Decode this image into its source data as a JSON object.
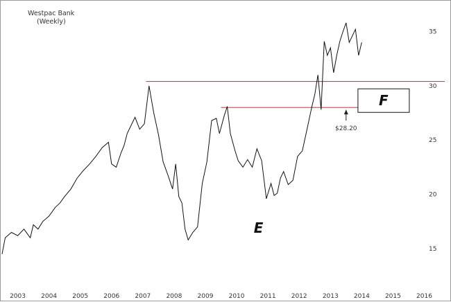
{
  "chart_data": {
    "type": "line",
    "title": "Westpac Bank",
    "subtitle": "(Weekly)",
    "xlabel": "",
    "ylabel": "",
    "x_ticks": [
      "2003",
      "2004",
      "2005",
      "2006",
      "2007",
      "2008",
      "2009",
      "2010",
      "2011",
      "2012",
      "2013",
      "2014",
      "2015",
      "2016"
    ],
    "y_ticks": [
      15,
      20,
      25,
      30,
      35
    ],
    "xlim": [
      2003.0,
      2016.6
    ],
    "ylim": [
      12.0,
      37.2
    ],
    "grid": false,
    "y_axis_side": "right",
    "series": [
      {
        "name": "",
        "x": [
          2003.0,
          2003.1,
          2003.3,
          2003.5,
          2003.7,
          2003.9,
          2004.0,
          2004.15,
          2004.3,
          2004.5,
          2004.7,
          2004.85,
          2005.0,
          2005.2,
          2005.4,
          2005.6,
          2005.8,
          2006.0,
          2006.2,
          2006.4,
          2006.5,
          2006.65,
          2006.8,
          2006.9,
          2007.0,
          2007.1,
          2007.25,
          2007.4,
          2007.55,
          2007.7,
          2007.85,
          2008.0,
          2008.15,
          2008.3,
          2008.45,
          2008.55,
          2008.65,
          2008.75,
          2008.85,
          2008.95,
          2009.1,
          2009.25,
          2009.4,
          2009.55,
          2009.7,
          2009.85,
          2009.95,
          2010.1,
          2010.2,
          2010.3,
          2010.45,
          2010.55,
          2010.7,
          2010.85,
          2011.0,
          2011.15,
          2011.3,
          2011.45,
          2011.6,
          2011.7,
          2011.8,
          2011.9,
          2012.0,
          2012.15,
          2012.3,
          2012.45,
          2012.6,
          2012.75,
          2012.9,
          2013.0,
          2013.1,
          2013.2,
          2013.3,
          2013.4,
          2013.5,
          2013.6,
          2013.7,
          2013.8,
          2013.9,
          2014.0,
          2014.1,
          2014.2,
          2014.3,
          2014.4,
          2014.5
        ],
        "y": [
          14.5,
          16.0,
          16.5,
          16.2,
          16.8,
          16.0,
          17.2,
          16.8,
          17.5,
          18.0,
          18.8,
          19.2,
          19.8,
          20.5,
          21.5,
          22.2,
          22.8,
          23.5,
          24.3,
          24.8,
          22.8,
          22.5,
          23.8,
          24.5,
          25.6,
          26.2,
          27.1,
          26.0,
          26.5,
          30.0,
          27.5,
          25.5,
          23.0,
          21.8,
          20.5,
          22.8,
          19.8,
          19.2,
          16.8,
          15.8,
          16.5,
          17.0,
          21.0,
          23.0,
          26.8,
          27.0,
          25.6,
          27.2,
          28.1,
          25.6,
          24.0,
          23.1,
          22.5,
          23.2,
          22.5,
          24.2,
          23.1,
          19.6,
          21.0,
          19.9,
          20.1,
          21.5,
          22.1,
          20.9,
          21.3,
          23.5,
          24.0,
          26.0,
          28.0,
          29.2,
          31.0,
          27.8,
          34.1,
          32.8,
          33.5,
          31.2,
          32.8,
          34.1,
          35.0,
          35.8,
          34.0,
          34.6,
          35.2,
          32.8,
          34.0
        ]
      }
    ],
    "lines": [
      {
        "type": "horizontal",
        "y": 30.4,
        "x_start": 2007.6,
        "color": "#e8363d"
      },
      {
        "type": "horizontal",
        "y": 28.0,
        "x_start": 2010.0,
        "color": "#e8363d"
      }
    ],
    "annotations": [
      {
        "text": "$28.20",
        "x": 2014.0,
        "y": 28.2,
        "arrow": "up"
      },
      {
        "text": "E",
        "x": 2011.2,
        "y": 18.0
      },
      {
        "text": "F",
        "x": 2015.2,
        "y": 28.7,
        "boxed": true
      }
    ]
  }
}
